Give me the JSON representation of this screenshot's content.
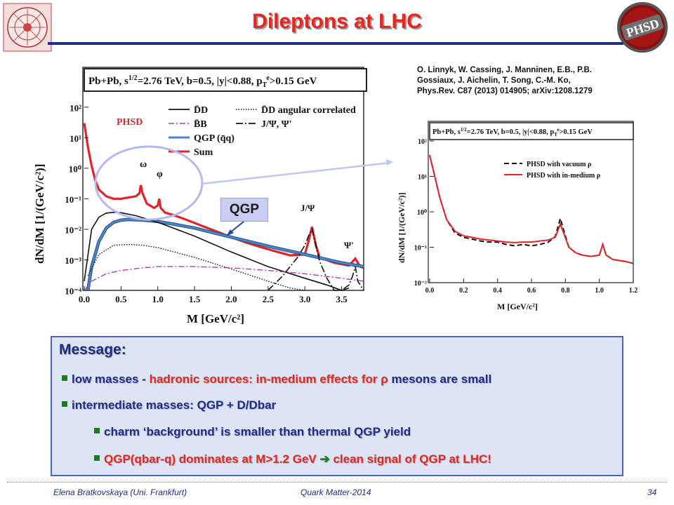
{
  "slide": {
    "title": "Dileptons at LHC",
    "reference": [
      "O. Linnyk, W. Cassing, J. Manninen, E.B., P.B.",
      "Gossiaux, J. Aichelin, T. Song, C.-M. Ko,",
      "Phys.Rev. C87 (2013) 014905; arXiv:1208.1279"
    ],
    "footer_left": "Elena Bratkovskaya  (Uni. Frankfurt)",
    "footer_center": "Quark Matter-2014",
    "page_number": "34",
    "logo_right_text": "PHSD"
  },
  "message": {
    "heading": "Message:",
    "b1_a": "low masses - ",
    "b1_b": "hadronic sources: ",
    "b1_c": "in-medium effects for ",
    "b1_rho": "ρ",
    "b1_d": " mesons are small",
    "b2_a": "intermediate masses: ",
    "b2_b": "QGP + D/Dbar",
    "b3": "charm ‘background’ is smaller than thermal QGP yield",
    "b4_a": "QGP(qbar-q)  dominates at M>1.2 GeV ",
    "b4_arrow": "➔",
    "b4_b": " clean signal of QGP at LHC!"
  },
  "annotation": {
    "qgp_callout": "QGP"
  },
  "chart_data": [
    {
      "type": "line",
      "title": "Pb+Pb, s^1/2=2.76 TeV, b=0.5, |y|<0.88, pT^e>0.15 GeV",
      "xlabel": "M  [GeV/c²]",
      "ylabel": "dN/dM  [1/(GeV/c²)]",
      "xlim": [
        0.0,
        3.8
      ],
      "ylim": [
        0.0001,
        300
      ],
      "yscale": "log",
      "xticks": [
        "0.0",
        "0.5",
        "1.0",
        "1.5",
        "2.0",
        "2.5",
        "3.0",
        "3.5"
      ],
      "yticks": [
        "10⁻⁴",
        "10⁻³",
        "10⁻²",
        "10⁻¹",
        "10⁰",
        "10¹",
        "10²"
      ],
      "legend": [
        "D̄D",
        "D̄D angular correlated",
        "B̄B",
        "J/Ψ, Ψ'",
        "QGP (q̄q)",
        "Sum"
      ],
      "legend_placement": "top-right",
      "series_label": "PHSD",
      "peak_labels": [
        "ω",
        "φ",
        "J/Ψ",
        "Ψ'"
      ],
      "series": [
        {
          "name": "Sum",
          "color": "#e0242a",
          "x": [
            0.0,
            0.05,
            0.1,
            0.15,
            0.2,
            0.3,
            0.4,
            0.5,
            0.6,
            0.7,
            0.75,
            0.77,
            0.79,
            0.85,
            0.95,
            1.0,
            1.02,
            1.04,
            1.1,
            1.2,
            1.4,
            1.6,
            1.8,
            2.0,
            2.2,
            2.4,
            2.6,
            2.8,
            3.0,
            3.05,
            3.097,
            3.15,
            3.2,
            3.4,
            3.6,
            3.686,
            3.75,
            3.8
          ],
          "y": [
            30,
            5,
            1.2,
            0.4,
            0.2,
            0.12,
            0.1,
            0.1,
            0.11,
            0.12,
            0.15,
            0.28,
            0.16,
            0.07,
            0.05,
            0.06,
            0.1,
            0.05,
            0.035,
            0.03,
            0.02,
            0.013,
            0.0085,
            0.0055,
            0.0037,
            0.0026,
            0.0019,
            0.0014,
            0.0015,
            0.004,
            0.012,
            0.003,
            0.0012,
            0.0008,
            0.00065,
            0.0011,
            0.0006,
            0.00055
          ]
        },
        {
          "name": "QGP (q̄q)",
          "color": "#4a86c8",
          "x": [
            0.05,
            0.1,
            0.2,
            0.3,
            0.4,
            0.5,
            0.6,
            0.8,
            1.0,
            1.2,
            1.5,
            2.0,
            2.5,
            3.0,
            3.5,
            3.8
          ],
          "y": [
            0.0001,
            0.0006,
            0.004,
            0.011,
            0.017,
            0.02,
            0.021,
            0.02,
            0.018,
            0.015,
            0.011,
            0.0055,
            0.0028,
            0.0015,
            0.0008,
            0.0006
          ]
        },
        {
          "name": "D̄D",
          "color": "#111111",
          "x": [
            0.0,
            0.1,
            0.2,
            0.3,
            0.4,
            0.5,
            0.7,
            1.0,
            1.5,
            2.0,
            2.5,
            3.0,
            3.3,
            3.5,
            3.6
          ],
          "y": [
            0.0002,
            0.01,
            0.025,
            0.034,
            0.036,
            0.035,
            0.028,
            0.017,
            0.006,
            0.0018,
            0.0006,
            0.00025,
            0.00015,
            0.0001,
            0.00012
          ]
        },
        {
          "name": "D̄D angular correlated",
          "color": "#111111",
          "x": [
            0.05,
            0.2,
            0.4,
            0.6,
            0.8,
            1.0,
            1.5,
            2.0,
            2.5,
            2.8,
            3.0
          ],
          "y": [
            0.0003,
            0.0015,
            0.003,
            0.0032,
            0.003,
            0.0025,
            0.0012,
            0.0005,
            0.0002,
            0.00012,
            0.0001
          ]
        },
        {
          "name": "B̄B",
          "color": "#b03bb0",
          "x": [
            0.0,
            0.1,
            0.3,
            0.5,
            0.8,
            1.0,
            1.5,
            2.0,
            2.5,
            3.0,
            3.5,
            3.8
          ],
          "y": [
            0.0001,
            0.0002,
            0.00035,
            0.00045,
            0.00055,
            0.0006,
            0.0006,
            0.00055,
            0.00045,
            0.00035,
            0.00025,
            0.0002
          ]
        },
        {
          "name": "J/Ψ, Ψ'",
          "color": "#111111",
          "x": [
            2.5,
            2.7,
            2.9,
            3.0,
            3.05,
            3.097,
            3.15,
            3.2,
            3.3,
            3.4,
            3.5,
            3.6,
            3.65,
            3.686,
            3.72,
            3.8
          ],
          "y": [
            0.0001,
            0.0003,
            0.0012,
            0.003,
            0.006,
            0.01,
            0.003,
            0.0009,
            0.00025,
            0.0001,
            0.0001,
            0.00015,
            0.0003,
            0.0006,
            0.0002,
            0.0001
          ]
        }
      ]
    },
    {
      "type": "line",
      "title": "Pb+Pb, s^1/2=2.76 TeV, b=0.5, |y|<0.88, pT^e>0.15 GeV",
      "xlabel": "M  [GeV/c²]",
      "ylabel": "dN/dM  [1/(GeV/c²)]",
      "xlim": [
        0.0,
        1.2
      ],
      "ylim": [
        0.01,
        100
      ],
      "yscale": "log",
      "xticks": [
        "0.0",
        "0.2",
        "0.4",
        "0.6",
        "0.8",
        "1.0",
        "1.2"
      ],
      "yticks": [
        "10⁻²",
        "10⁻¹",
        "10⁰",
        "10¹",
        "10²"
      ],
      "legend_placement": "top-right",
      "series": [
        {
          "name": "PHSD with vacuum ρ",
          "color": "#111111",
          "x": [
            0.0,
            0.03,
            0.06,
            0.1,
            0.15,
            0.2,
            0.25,
            0.3,
            0.35,
            0.4,
            0.45,
            0.5,
            0.55,
            0.6,
            0.65,
            0.7,
            0.74,
            0.77,
            0.79,
            0.82,
            0.86,
            0.9,
            0.95,
            1.0,
            1.02,
            1.04,
            1.08,
            1.15,
            1.2
          ],
          "y": [
            40,
            10,
            2.5,
            0.6,
            0.25,
            0.19,
            0.17,
            0.15,
            0.14,
            0.14,
            0.12,
            0.11,
            0.12,
            0.11,
            0.12,
            0.14,
            0.2,
            0.65,
            0.3,
            0.1,
            0.07,
            0.06,
            0.055,
            0.06,
            0.12,
            0.06,
            0.045,
            0.04,
            0.035
          ]
        },
        {
          "name": "PHSD with in-medium ρ",
          "color": "#e0242a",
          "x": [
            0.0,
            0.03,
            0.06,
            0.1,
            0.15,
            0.2,
            0.25,
            0.3,
            0.35,
            0.4,
            0.45,
            0.5,
            0.55,
            0.6,
            0.65,
            0.7,
            0.74,
            0.77,
            0.79,
            0.82,
            0.86,
            0.9,
            0.95,
            1.0,
            1.02,
            1.04,
            1.08,
            1.15,
            1.2
          ],
          "y": [
            40,
            10,
            2.5,
            0.6,
            0.28,
            0.21,
            0.19,
            0.17,
            0.16,
            0.15,
            0.14,
            0.135,
            0.14,
            0.14,
            0.15,
            0.16,
            0.19,
            0.45,
            0.25,
            0.1,
            0.07,
            0.06,
            0.055,
            0.06,
            0.12,
            0.06,
            0.045,
            0.04,
            0.035
          ]
        }
      ]
    }
  ]
}
